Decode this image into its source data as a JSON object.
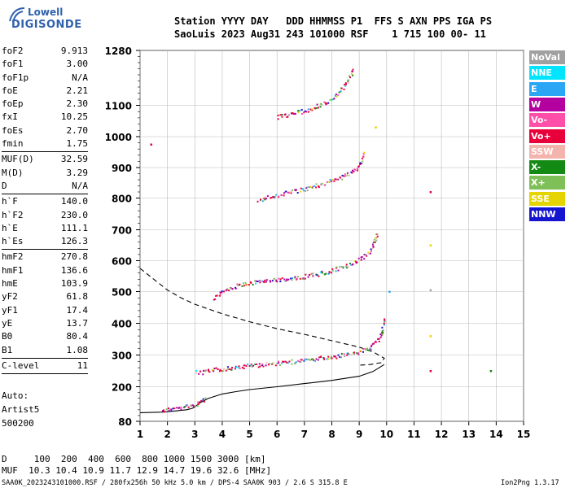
{
  "logo": {
    "line1": "Lowell",
    "line2": "DIGISONDE"
  },
  "header": {
    "row1": "Station YYYY DAY   DDD HHMMSS P1  FFS S AXN PPS IGA PS",
    "row2": "SaoLuis 2023 Aug31 243 101000 RSF    1 715 100 00- 11"
  },
  "params": [
    {
      "name": "foF2",
      "value": "9.913"
    },
    {
      "name": "foF1",
      "value": "3.00"
    },
    {
      "name": "foF1p",
      "value": "N/A"
    },
    {
      "name": "foE",
      "value": "2.21"
    },
    {
      "name": "foEp",
      "value": "2.30"
    },
    {
      "name": "fxI",
      "value": "10.25"
    },
    {
      "name": "foEs",
      "value": "2.70"
    },
    {
      "name": "fmin",
      "value": "1.75"
    },
    {
      "sep": true
    },
    {
      "name": "MUF(D)",
      "value": "32.59"
    },
    {
      "name": "M(D)",
      "value": "3.29"
    },
    {
      "name": "D",
      "value": "N/A"
    },
    {
      "sep": true
    },
    {
      "name": "h`F",
      "value": "140.0"
    },
    {
      "name": "h`F2",
      "value": "230.0"
    },
    {
      "name": "h`E",
      "value": "111.1"
    },
    {
      "name": "h`Es",
      "value": "126.3"
    },
    {
      "sep": true
    },
    {
      "name": "hmF2",
      "value": "270.8"
    },
    {
      "name": "hmF1",
      "value": "136.6"
    },
    {
      "name": "hmE",
      "value": "103.9"
    },
    {
      "name": "yF2",
      "value": "61.8"
    },
    {
      "name": "yF1",
      "value": "17.4"
    },
    {
      "name": "yE",
      "value": "13.7"
    },
    {
      "name": "B0",
      "value": "80.4"
    },
    {
      "name": "B1",
      "value": "1.08"
    },
    {
      "sep": true
    },
    {
      "name": "C-level",
      "value": "11"
    },
    {
      "sep": true
    }
  ],
  "auto": {
    "line1": "Auto:",
    "line2": "Artist5",
    "line3": "500200"
  },
  "legend": [
    {
      "label": "NoVal",
      "color": "#a0a0a0"
    },
    {
      "label": "NNE",
      "color": "#00e5ff"
    },
    {
      "label": "E",
      "color": "#2aa6f5"
    },
    {
      "label": "W",
      "color": "#b3009f"
    },
    {
      "label": "Vo-",
      "color": "#ff4fa8"
    },
    {
      "label": "Vo+",
      "color": "#e8003a"
    },
    {
      "label": "SSW",
      "color": "#f4b4ae"
    },
    {
      "label": "X-",
      "color": "#138a13"
    },
    {
      "label": "X+",
      "color": "#7fbf58"
    },
    {
      "label": "SSE",
      "color": "#e5d400"
    },
    {
      "label": "NNW",
      "color": "#1515d0"
    }
  ],
  "chart_data": {
    "type": "scatter",
    "title": "",
    "xlabel": "",
    "ylabel": "",
    "xlim": [
      1,
      15
    ],
    "ylim": [
      80,
      1280
    ],
    "x_ticks": [
      1,
      2,
      3,
      4,
      5,
      6,
      7,
      8,
      9,
      10,
      11,
      12,
      13,
      14,
      15
    ],
    "y_ticks": [
      80,
      200,
      300,
      400,
      500,
      600,
      700,
      800,
      900,
      1000,
      1100,
      1280
    ],
    "grid": true,
    "legend_placement": "right",
    "traces": [
      {
        "name": "E/Es layer",
        "x": [
          1.8,
          2.0,
          2.2,
          2.4,
          2.6,
          2.8,
          3.0,
          3.2,
          3.4
        ],
        "y": [
          120,
          122,
          126,
          128,
          132,
          135,
          140,
          150,
          160
        ]
      },
      {
        "name": "F trace 1st hop",
        "x": [
          3.0,
          3.2,
          3.5,
          4.0,
          4.5,
          5.0,
          5.5,
          6.0,
          6.5,
          7.0,
          7.5,
          8.0,
          8.5,
          9.0,
          9.3,
          9.6,
          9.8,
          9.9
        ],
        "y": [
          250,
          245,
          252,
          258,
          262,
          268,
          272,
          276,
          280,
          285,
          290,
          296,
          302,
          312,
          322,
          340,
          370,
          420
        ]
      },
      {
        "name": "F trace 2nd hop",
        "x": [
          3.7,
          4.0,
          4.5,
          5.0,
          5.5,
          6.0,
          6.5,
          7.0,
          7.5,
          8.0,
          8.5,
          9.0,
          9.3,
          9.5,
          9.65
        ],
        "y": [
          480,
          500,
          520,
          530,
          535,
          540,
          545,
          550,
          558,
          570,
          585,
          605,
          625,
          650,
          695
        ]
      },
      {
        "name": "F trace 3rd hop",
        "x": [
          5.3,
          5.7,
          6.2,
          6.7,
          7.2,
          7.7,
          8.2,
          8.7,
          9.0,
          9.2
        ],
        "y": [
          795,
          805,
          815,
          825,
          835,
          850,
          865,
          885,
          910,
          950
        ]
      },
      {
        "name": "F trace 4th hop",
        "x": [
          6.0,
          6.5,
          7.0,
          7.5,
          7.9,
          8.1,
          8.4,
          8.8
        ],
        "y": [
          1065,
          1072,
          1085,
          1100,
          1115,
          1130,
          1160,
          1220
        ]
      },
      {
        "name": "scattered",
        "x": [
          1.4,
          9.6,
          10.1,
          11.6,
          11.6,
          11.6,
          11.6,
          11.6,
          13.8
        ],
        "y": [
          975,
          1030,
          500,
          820,
          650,
          505,
          360,
          250,
          250
        ]
      }
    ],
    "curves": [
      {
        "name": "dashed profile",
        "style": "dashed",
        "x": [
          1.0,
          1.5,
          2.0,
          2.5,
          3.0,
          4.0,
          5.0,
          6.0,
          7.0,
          8.0,
          9.0,
          9.5,
          9.913,
          9.8,
          9.4,
          9.0
        ],
        "y": [
          575,
          540,
          505,
          480,
          460,
          430,
          405,
          383,
          365,
          345,
          325,
          310,
          290,
          276,
          270,
          268
        ]
      },
      {
        "name": "solid profile",
        "style": "solid",
        "x": [
          1.0,
          1.8,
          2.2,
          2.7,
          2.9,
          3.0,
          3.2,
          3.5,
          4.0,
          4.5,
          5.0,
          6.0,
          7.0,
          8.0,
          9.0,
          9.5,
          9.913
        ],
        "y": [
          110,
          112,
          115,
          120,
          125,
          130,
          145,
          160,
          175,
          183,
          190,
          200,
          210,
          220,
          233,
          248,
          270
        ]
      }
    ]
  },
  "footer": {
    "d_row": "D     100  200  400  600  800 1000 1500 3000 [km]",
    "muf_row": "MUF  10.3 10.4 10.9 11.7 12.9 14.7 19.6 32.6 [MHz]",
    "info": "SAA0K_2023243101000.RSF / 280fx256h 50 kHz 5.0 km / DPS-4 SAA0K 903 / 2.6 S 315.8 E",
    "version": "Ion2Png 1.3.17"
  }
}
